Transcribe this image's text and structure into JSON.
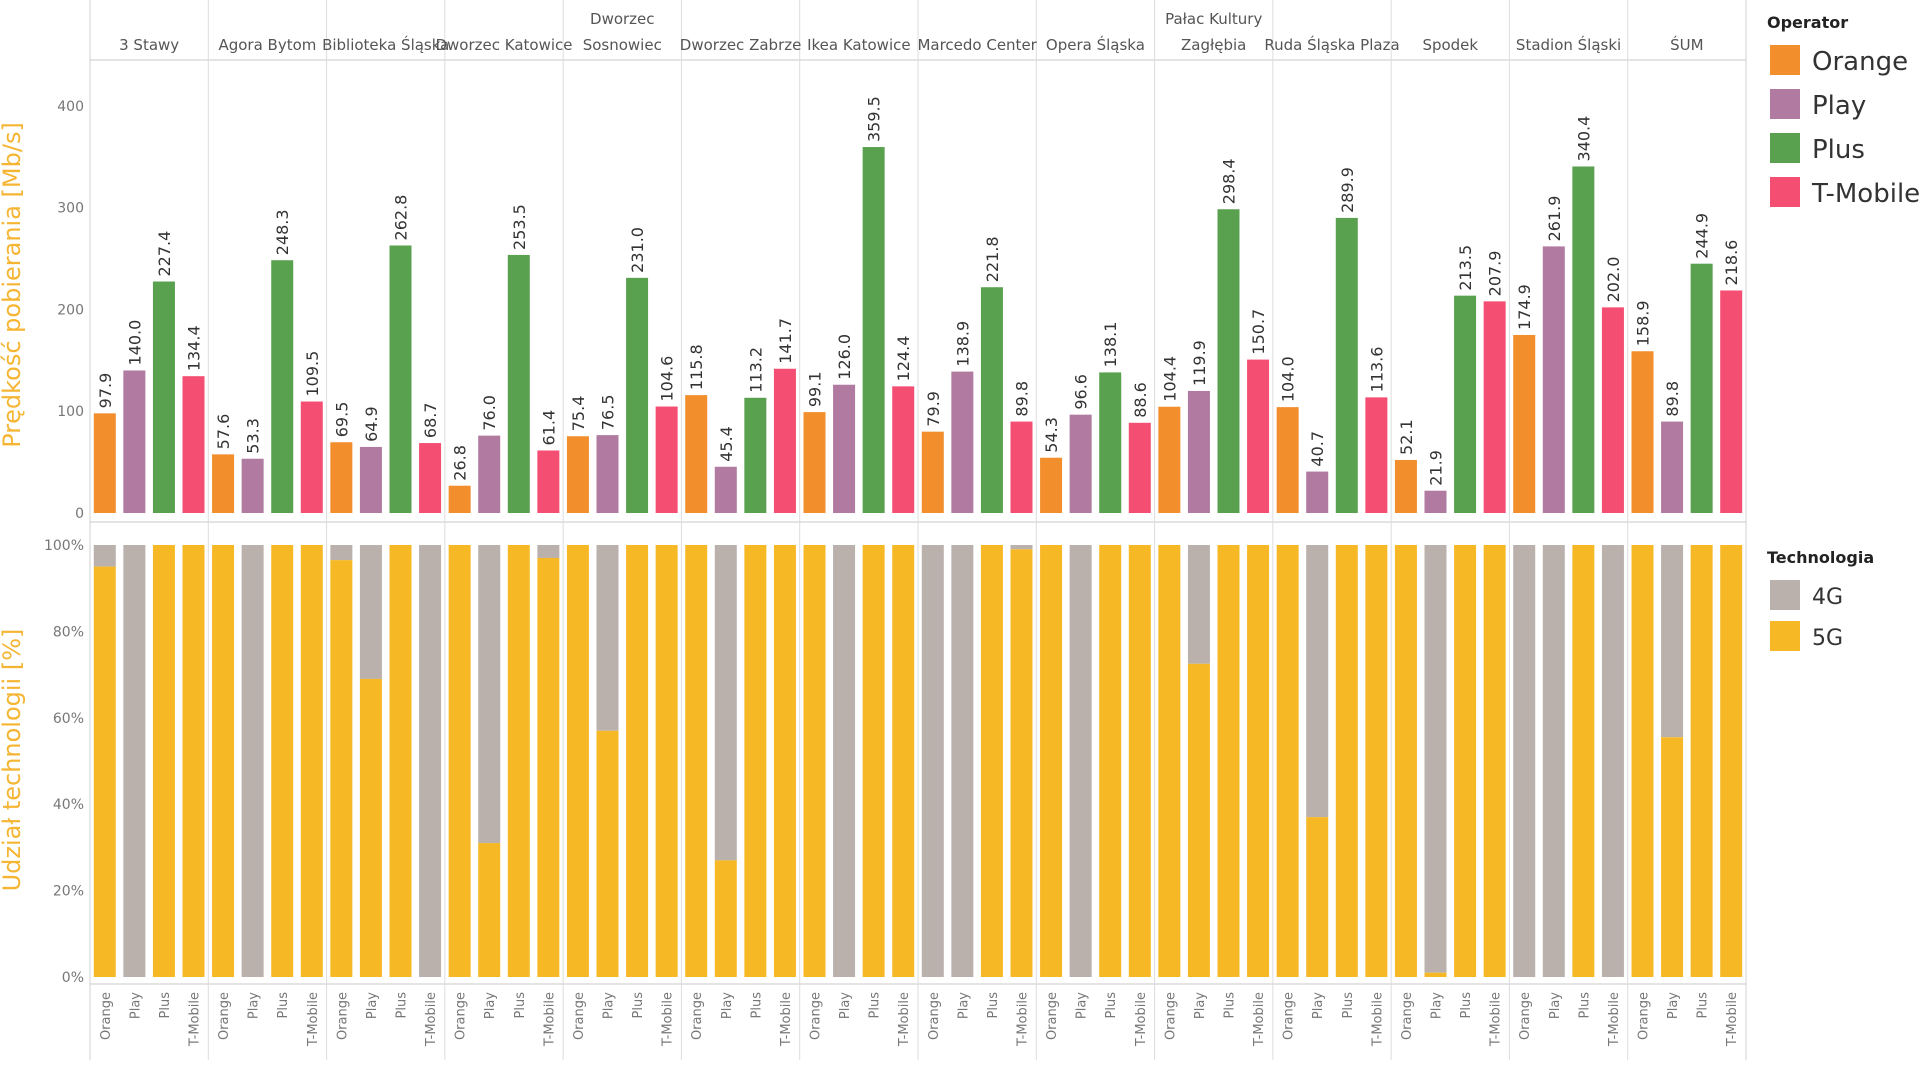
{
  "chart_data": [
    {
      "type": "bar",
      "ylabel": "Prędkość pobierania [Mb/s]",
      "ylim": [
        0,
        445
      ],
      "yticks": [
        0,
        100,
        200,
        300,
        400
      ],
      "grid": false,
      "legend_placement": "top-right",
      "categories": [
        "3 Stawy",
        "Agora Bytom",
        "Biblioteka Śląska",
        "Dworzec Katowice",
        "Dworzec Sosnowiec",
        "Dworzec Zabrze",
        "Ikea Katowice",
        "Marcedo Center",
        "Opera Śląska",
        "Pałac Kultury Zagłębia",
        "Ruda Śląska Plaza",
        "Spodek",
        "Stadion Śląski",
        "ŚUM"
      ],
      "category_header_lines": [
        [
          "3 Stawy"
        ],
        [
          "Agora Bytom"
        ],
        [
          "Biblioteka Śląska"
        ],
        [
          "Dworzec Katowice"
        ],
        [
          "Dworzec",
          "Sosnowiec"
        ],
        [
          "Dworzec Zabrze"
        ],
        [
          "Ikea Katowice"
        ],
        [
          "Marcedo Center"
        ],
        [
          "Opera Śląska"
        ],
        [
          "Pałac Kultury",
          "Zagłębia"
        ],
        [
          "Ruda Śląska Plaza"
        ],
        [
          "Spodek"
        ],
        [
          "Stadion Śląski"
        ],
        [
          "ŚUM"
        ]
      ],
      "legend_title": "Operator",
      "series": [
        {
          "name": "Orange",
          "values": [
            97.9,
            57.6,
            69.5,
            26.8,
            75.4,
            115.8,
            99.1,
            79.9,
            54.3,
            104.4,
            104.0,
            52.1,
            174.9,
            158.9
          ]
        },
        {
          "name": "Play",
          "values": [
            140.0,
            53.3,
            64.9,
            76.0,
            76.5,
            45.4,
            126.0,
            138.9,
            96.6,
            119.9,
            40.7,
            21.9,
            261.9,
            89.8
          ]
        },
        {
          "name": "Plus",
          "values": [
            227.4,
            248.3,
            262.8,
            253.5,
            231.0,
            113.2,
            359.5,
            221.8,
            138.1,
            298.4,
            289.9,
            213.5,
            340.4,
            244.9
          ]
        },
        {
          "name": "T-Mobile",
          "values": [
            134.4,
            109.5,
            68.7,
            61.4,
            104.6,
            141.7,
            124.4,
            89.8,
            88.6,
            150.7,
            113.6,
            207.9,
            202.0,
            218.6
          ]
        }
      ],
      "data_labels": [
        [
          "97.9",
          "57.6",
          "69.5",
          "26.8",
          "75.4",
          "115.8",
          "99.1",
          "79.9",
          "54.3",
          "104.4",
          "104.0",
          "52.1",
          "174.9",
          "158.9"
        ],
        [
          "140.0",
          "53.3",
          "64.9",
          "76.0",
          "76.5",
          "45.4",
          "126.0",
          "138.9",
          "96.6",
          "119.9",
          "40.7",
          "21.9",
          "261.9",
          "89.8"
        ],
        [
          "227.4",
          "248.3",
          "262.8",
          "253.5",
          "231.0",
          "113.2",
          "359.5",
          "221.8",
          "138.1",
          "298.4",
          "289.9",
          "213.5",
          "340.4",
          "244.9"
        ],
        [
          "134.4",
          "109.5",
          "68.7",
          "61.4",
          "104.6",
          "141.7",
          "124.4",
          "89.8",
          "88.6",
          "150.7",
          "113.6",
          "207.9",
          "202.0",
          "218.6"
        ]
      ]
    },
    {
      "type": "bar",
      "stacked": true,
      "ylabel": "Udział technologii [%]",
      "ylim": [
        0,
        100
      ],
      "yticks": [
        "0%",
        "20%",
        "40%",
        "60%",
        "80%",
        "100%"
      ],
      "grid": false,
      "legend_placement": "right",
      "legend_title": "Technologia",
      "x_operators": [
        "Orange",
        "Play",
        "Plus",
        "T-Mobile"
      ],
      "series": [
        {
          "name": "4G",
          "note_values_are": "share 4G = 100 - 5G"
        },
        {
          "name": "5G",
          "values": [
            [
              95,
              0,
              100,
              100
            ],
            [
              100,
              0,
              100,
              100
            ],
            [
              96.5,
              69,
              100,
              0
            ],
            [
              100,
              31,
              100,
              97
            ],
            [
              100,
              57,
              100,
              100
            ],
            [
              100,
              27,
              100,
              100
            ],
            [
              100,
              0,
              100,
              100
            ],
            [
              0,
              0,
              100,
              99
            ],
            [
              100,
              0,
              100,
              100
            ],
            [
              100,
              72.5,
              100,
              100
            ],
            [
              100,
              37,
              100,
              100
            ],
            [
              100,
              1,
              100,
              100
            ],
            [
              0,
              0,
              100,
              0
            ],
            [
              100,
              55.5,
              100,
              100
            ]
          ]
        }
      ]
    }
  ],
  "colors": {
    "Orange": "#f28e2b",
    "Play": "#b07aa1",
    "Plus": "#59a14f",
    "T-Mobile": "#f44e73",
    "4G": "#bab0ac",
    "5G": "#f7b826",
    "axis_title": "#f5b532"
  }
}
